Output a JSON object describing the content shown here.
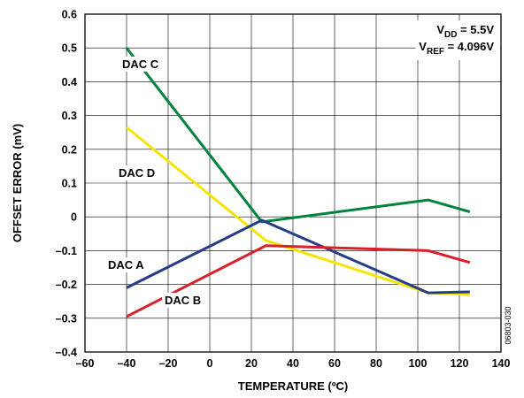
{
  "chart_data": {
    "type": "line",
    "xlabel": "TEMPERATURE (ºC)",
    "ylabel": "OFFSET ERROR (mV)",
    "xlim": [
      -60,
      140
    ],
    "ylim": [
      -0.4,
      0.6
    ],
    "xticks": [
      -60,
      -40,
      -20,
      0,
      20,
      40,
      60,
      80,
      100,
      120,
      140
    ],
    "yticks": [
      -0.4,
      -0.3,
      -0.2,
      -0.1,
      0,
      0.1,
      0.2,
      0.3,
      0.4,
      0.5,
      0.6
    ],
    "grid": true,
    "conditions": {
      "vdd_main": "V",
      "vdd_sub": "DD",
      "vdd_value": " = 5.5V",
      "vref_main": "V",
      "vref_sub": "REF",
      "vref_value": " = 4.096V"
    },
    "figure_id": "06803-030",
    "series": [
      {
        "name": "DAC C",
        "color": "#00843d",
        "x": [
          -40,
          25,
          105,
          125
        ],
        "y": [
          0.5,
          -0.015,
          0.05,
          0.015
        ]
      },
      {
        "name": "DAC D",
        "color": "#f5e400",
        "x": [
          -40,
          27,
          105,
          125
        ],
        "y": [
          0.265,
          -0.07,
          -0.225,
          -0.23
        ]
      },
      {
        "name": "DAC A",
        "color": "#233e86",
        "x": [
          -40,
          25,
          105,
          125
        ],
        "y": [
          -0.21,
          -0.01,
          -0.225,
          -0.222
        ]
      },
      {
        "name": "DAC B",
        "color": "#d91f2a",
        "x": [
          -40,
          27,
          105,
          125
        ],
        "y": [
          -0.295,
          -0.085,
          -0.1,
          -0.135
        ]
      }
    ]
  }
}
